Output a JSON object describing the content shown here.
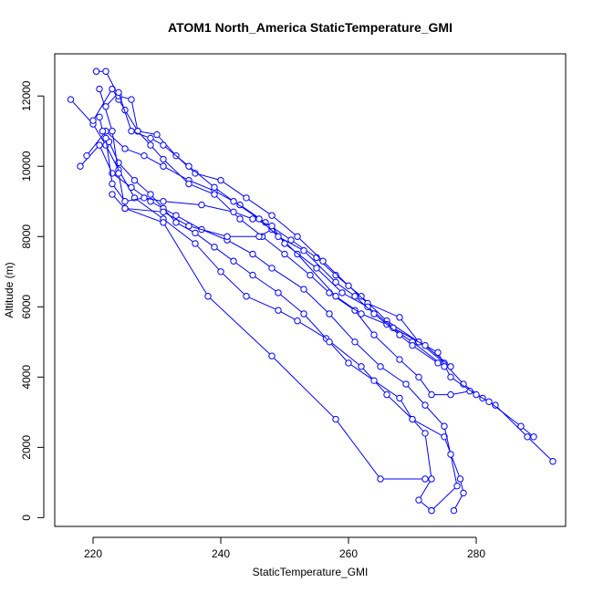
{
  "chart_data": {
    "type": "line",
    "title": "ATOM1 North_America StaticTemperature_GMI",
    "xlabel": "StaticTemperature_GMI",
    "ylabel": "Altitude (m)",
    "xlim": [
      214,
      294
    ],
    "ylim": [
      -250,
      13200
    ],
    "xticks": [
      220,
      240,
      260,
      280
    ],
    "yticks": [
      0,
      2000,
      4000,
      6000,
      8000,
      10000,
      12000
    ],
    "grid": false,
    "legend": "none",
    "marker": "open-circle",
    "color": "#0000ff",
    "series": [
      {
        "points": [
          [
            216.5,
            11900
          ],
          [
            220,
            11200
          ],
          [
            222,
            10600
          ],
          [
            224,
            9900
          ],
          [
            226.5,
            9100
          ],
          [
            231,
            8500
          ],
          [
            236,
            7800
          ],
          [
            240,
            7000
          ],
          [
            244,
            6300
          ],
          [
            249,
            5900
          ],
          [
            252,
            5600
          ],
          [
            256.5,
            5100
          ],
          [
            262,
            4300
          ],
          [
            266,
            3500
          ],
          [
            270,
            2800
          ],
          [
            275,
            2300
          ],
          [
            277.5,
            1100
          ],
          [
            278,
            700
          ],
          [
            276.5,
            200
          ]
        ]
      },
      {
        "points": [
          [
            218,
            10000
          ],
          [
            221,
            10600
          ],
          [
            223,
            9800
          ],
          [
            226,
            9400
          ],
          [
            229,
            9000
          ],
          [
            233,
            8600
          ],
          [
            237,
            8200
          ],
          [
            241,
            7900
          ],
          [
            245,
            7500
          ],
          [
            248,
            7100
          ],
          [
            253,
            6500
          ],
          [
            257,
            5800
          ],
          [
            261,
            5000
          ],
          [
            265,
            4300
          ],
          [
            269,
            3800
          ],
          [
            272,
            3200
          ],
          [
            275,
            2600
          ],
          [
            276,
            1800
          ],
          [
            277,
            900
          ],
          [
            273,
            200
          ]
        ]
      },
      {
        "points": [
          [
            219,
            10300
          ],
          [
            222,
            11000
          ],
          [
            225,
            10500
          ],
          [
            228,
            10300
          ],
          [
            231,
            10000
          ],
          [
            235,
            9600
          ],
          [
            239,
            9300
          ],
          [
            243,
            8900
          ],
          [
            247,
            8400
          ],
          [
            251,
            7900
          ],
          [
            255,
            7400
          ],
          [
            258,
            6900
          ],
          [
            262,
            6300
          ],
          [
            266,
            5600
          ],
          [
            271,
            5000
          ],
          [
            275,
            4400
          ],
          [
            278,
            3800
          ],
          [
            281,
            3400
          ],
          [
            283,
            3200
          ],
          [
            288,
            2300
          ],
          [
            292,
            1600
          ]
        ]
      },
      {
        "points": [
          [
            220,
            11300
          ],
          [
            223,
            12200
          ],
          [
            224,
            11900
          ],
          [
            225,
            11600
          ],
          [
            227,
            11000
          ],
          [
            229,
            10600
          ],
          [
            231,
            10200
          ],
          [
            235,
            9500
          ],
          [
            239,
            9200
          ],
          [
            243,
            8500
          ],
          [
            246.5,
            8000
          ],
          [
            250,
            7500
          ],
          [
            254,
            6900
          ],
          [
            257,
            6400
          ],
          [
            261,
            5900
          ],
          [
            264,
            5200
          ],
          [
            268,
            4500
          ],
          [
            271,
            4000
          ],
          [
            273,
            3500
          ],
          [
            276,
            3500
          ],
          [
            279,
            3600
          ],
          [
            282,
            3300
          ],
          [
            287,
            2600
          ],
          [
            289,
            2300
          ]
        ]
      },
      {
        "points": [
          [
            220.5,
            12700
          ],
          [
            222,
            12700
          ],
          [
            224,
            12000
          ],
          [
            226,
            11900
          ],
          [
            227,
            11000
          ],
          [
            230,
            10900
          ],
          [
            233,
            10300
          ],
          [
            236,
            9800
          ],
          [
            240,
            9600
          ],
          [
            244,
            9100
          ],
          [
            248,
            8600
          ],
          [
            252,
            8000
          ],
          [
            256,
            7300
          ],
          [
            260,
            6600
          ],
          [
            263,
            6100
          ],
          [
            268,
            5700
          ],
          [
            271,
            5000
          ],
          [
            274,
            4700
          ],
          [
            276,
            4000
          ],
          [
            280,
            3500
          ]
        ]
      },
      {
        "points": [
          [
            221,
            11400
          ],
          [
            221.5,
            11000
          ],
          [
            222.5,
            10700
          ],
          [
            224,
            10100
          ],
          [
            226.5,
            9600
          ],
          [
            229,
            9200
          ],
          [
            231,
            8800
          ],
          [
            233,
            8400
          ],
          [
            236,
            8100
          ],
          [
            239,
            7700
          ],
          [
            242,
            7300
          ],
          [
            245,
            6900
          ],
          [
            249,
            6400
          ],
          [
            253,
            5800
          ],
          [
            257,
            5000
          ],
          [
            260,
            4400
          ],
          [
            264,
            3900
          ],
          [
            268,
            3400
          ],
          [
            270,
            2800
          ],
          [
            272,
            2400
          ],
          [
            273,
            1100
          ],
          [
            271,
            500
          ],
          [
            273,
            200
          ]
        ]
      },
      {
        "points": [
          [
            221,
            12200
          ],
          [
            223,
            11000
          ],
          [
            224,
            9800
          ],
          [
            225,
            8800
          ],
          [
            231,
            8700
          ],
          [
            235,
            8300
          ],
          [
            241,
            8000
          ],
          [
            246,
            8000
          ],
          [
            248,
            8200
          ],
          [
            252,
            7500
          ],
          [
            258,
            6300
          ],
          [
            262,
            5800
          ],
          [
            266,
            5500
          ],
          [
            270,
            5000
          ],
          [
            275,
            4300
          ]
        ]
      },
      {
        "points": [
          [
            222,
            10800
          ],
          [
            223,
            9500
          ],
          [
            225,
            9000
          ],
          [
            228,
            9100
          ],
          [
            231,
            9000
          ],
          [
            237,
            8900
          ],
          [
            242,
            8700
          ],
          [
            245,
            8500
          ],
          [
            248,
            8300
          ],
          [
            250,
            7800
          ],
          [
            255,
            7100
          ],
          [
            259,
            6400
          ],
          [
            263,
            6000
          ],
          [
            267,
            5400
          ],
          [
            272,
            4900
          ],
          [
            276,
            4300
          ]
        ]
      },
      {
        "points": [
          [
            223,
            9200
          ],
          [
            225,
            8800
          ],
          [
            231,
            8400
          ],
          [
            238,
            6300
          ],
          [
            248,
            4600
          ],
          [
            258,
            2800
          ],
          [
            265,
            1100
          ],
          [
            272,
            1100
          ]
        ]
      },
      {
        "points": [
          [
            222,
            11700
          ],
          [
            224,
            12100
          ],
          [
            226,
            11000
          ],
          [
            229,
            10800
          ],
          [
            231,
            10600
          ],
          [
            235,
            10000
          ],
          [
            239,
            9400
          ],
          [
            242,
            9000
          ],
          [
            246,
            8500
          ],
          [
            249,
            8000
          ],
          [
            253,
            7600
          ],
          [
            258,
            6700
          ],
          [
            261,
            6300
          ],
          [
            264,
            5800
          ],
          [
            268,
            5200
          ],
          [
            270,
            4900
          ],
          [
            274,
            4400
          ]
        ]
      }
    ]
  }
}
